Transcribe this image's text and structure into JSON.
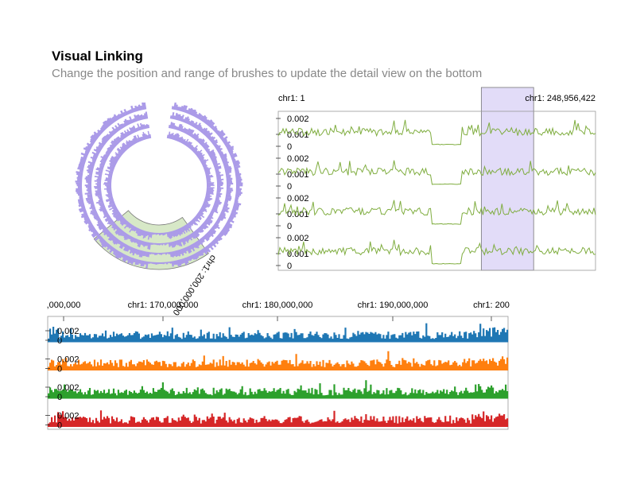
{
  "header": {
    "title": "Visual Linking",
    "subtitle": "Change the position and range of brushes to update the detail view on the bottom"
  },
  "colors": {
    "circular_bars": "#ab9be8",
    "circular_brush": "#c9e0b4",
    "line": "#7fad3f",
    "linear_brush": "#ddd6f7",
    "detail_series": [
      "#1f77b4",
      "#ff7f0e",
      "#2ca02c",
      "#d62728"
    ]
  },
  "chart_data": [
    {
      "type": "area",
      "name": "circular overview",
      "rings": 4,
      "brush_label": "chr1: 200,000,000",
      "brush_start_fraction": 0.4,
      "brush_end_fraction": 0.64
    },
    {
      "type": "line",
      "name": "linear overview",
      "x_start_label": "chr1: 1",
      "x_end_label": "chr1: 248,956,422",
      "rows": 4,
      "tick_labels": [
        "0.002",
        "0.001",
        "0"
      ],
      "ylim": [
        0,
        0.0025
      ],
      "brush_start_fraction": 0.64,
      "brush_end_fraction": 0.805
    },
    {
      "type": "bar",
      "name": "detail view",
      "x_tick_labels": [
        ",000,000",
        "chr1: 170,000,000",
        "chr1: 180,000,000",
        "chr1: 190,000,000",
        "chr1: 200"
      ],
      "row_tick_labels": [
        "0.002",
        "0"
      ],
      "rows": 4,
      "ylim": [
        0,
        0.0025
      ]
    }
  ]
}
